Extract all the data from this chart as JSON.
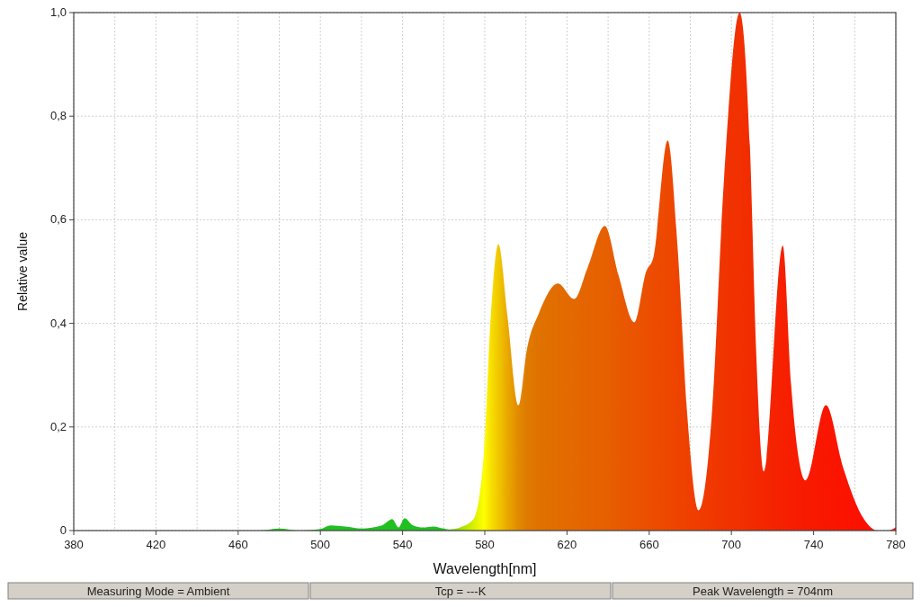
{
  "chart_data": {
    "type": "area",
    "xlabel": "Wavelength[nm]",
    "ylabel": "Relative value",
    "xlim": [
      380,
      780
    ],
    "xticks": [
      380,
      420,
      460,
      500,
      540,
      580,
      620,
      660,
      700,
      740,
      780
    ],
    "ylim": [
      0,
      1
    ],
    "yticks": [
      {
        "value": 0,
        "label": "0"
      },
      {
        "value": 0.2,
        "label": "0,2"
      },
      {
        "value": 0.4,
        "label": "0,4"
      },
      {
        "value": 0.6,
        "label": "0,6"
      },
      {
        "value": 0.8,
        "label": "0,8"
      },
      {
        "value": 1,
        "label": "1,0"
      }
    ],
    "grid": true,
    "series": [
      {
        "x": [
          380,
          470,
          480,
          490,
          500,
          505,
          512,
          520,
          530,
          535,
          538,
          541,
          545,
          550,
          555,
          560,
          563,
          568,
          574.5,
          579.6,
          583,
          586.6,
          591,
          596.4,
          600.5,
          606.4,
          615.6,
          623.5,
          630,
          638.4,
          645,
          652.8,
          658.5,
          662,
          669,
          673.8,
          678.6,
          684,
          690.4,
          696.4,
          704,
          709,
          712,
          715.7,
          725,
          729,
          736,
          746,
          754.4,
          764.5,
          771,
          776,
          780
        ],
        "values": [
          0,
          0,
          0.004,
          0,
          0.003,
          0.01,
          0.008,
          0.004,
          0.01,
          0.022,
          0.006,
          0.024,
          0.01,
          0.006,
          0.008,
          0.004,
          0.002,
          0.006,
          0.022,
          0.15,
          0.42,
          0.553,
          0.415,
          0.242,
          0.35,
          0.42,
          0.477,
          0.447,
          0.507,
          0.588,
          0.494,
          0.402,
          0.5,
          0.527,
          0.753,
          0.547,
          0.219,
          0.039,
          0.219,
          0.678,
          1.0,
          0.743,
          0.35,
          0.114,
          0.55,
          0.284,
          0.097,
          0.242,
          0.121,
          0.022,
          0,
          0,
          0.006
        ],
        "colors": [
          "#20c020",
          "#20c020",
          "#20c020",
          "#20c020",
          "#20c020",
          "#20c020",
          "#20c020",
          "#20c020",
          "#20c020",
          "#20c020",
          "#20c020",
          "#20c020",
          "#20c020",
          "#20c020",
          "#20c020",
          "#20c020",
          "#60d010",
          "#a0e000",
          "#d8f000",
          "#ffff00",
          "#f8e000",
          "#f0c800",
          "#eaa800",
          "#e08a00",
          "#df7a00",
          "#e07200",
          "#e26c00",
          "#e46800",
          "#e56400",
          "#e66000",
          "#e85a00",
          "#ea5400",
          "#eb5000",
          "#ec4c00",
          "#ee4800",
          "#ee4400",
          "#ef4000",
          "#f03c00",
          "#f03800",
          "#f03400",
          "#f23000",
          "#f22c00",
          "#f32800",
          "#f42600",
          "#f62000",
          "#f71e00",
          "#f81a00",
          "#fa1600",
          "#fb1400",
          "#fc1000",
          "#fd1000",
          "#fe0e00",
          "#ff0c00"
        ]
      }
    ],
    "annotations": [
      "Measuring Mode = Ambient",
      "Tcp = ---K",
      "Peak Wavelength = 704nm"
    ]
  }
}
